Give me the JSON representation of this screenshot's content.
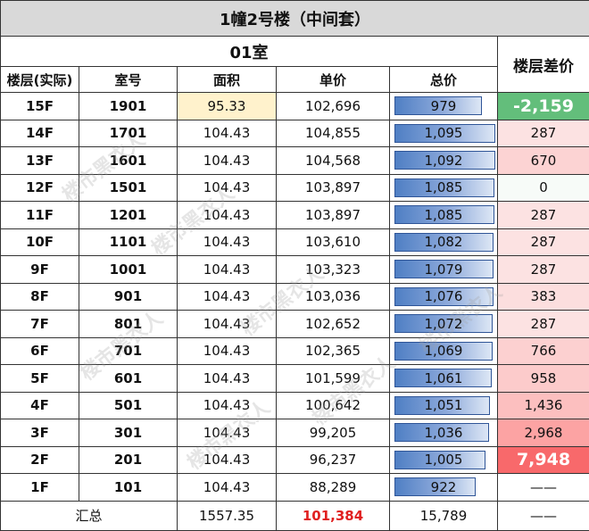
{
  "title": "1幢2号楼（中间套）",
  "room_label": "01室",
  "diff_header": "楼层差价",
  "headers": {
    "floor": "楼层(实际)",
    "unit": "室号",
    "area": "面积",
    "price": "单价",
    "total": "总价"
  },
  "rows": [
    {
      "floor": "15F",
      "unit": "1901",
      "area": "95.33",
      "price": "102,696",
      "total": "979",
      "total_val": 979,
      "diff": "-2,159",
      "diff_val": -2159
    },
    {
      "floor": "14F",
      "unit": "1701",
      "area": "104.43",
      "price": "104,855",
      "total": "1,095",
      "total_val": 1095,
      "diff": "287",
      "diff_val": 287
    },
    {
      "floor": "13F",
      "unit": "1601",
      "area": "104.43",
      "price": "104,568",
      "total": "1,092",
      "total_val": 1092,
      "diff": "670",
      "diff_val": 670
    },
    {
      "floor": "12F",
      "unit": "1501",
      "area": "104.43",
      "price": "103,897",
      "total": "1,085",
      "total_val": 1085,
      "diff": "0",
      "diff_val": 0
    },
    {
      "floor": "11F",
      "unit": "1201",
      "area": "104.43",
      "price": "103,897",
      "total": "1,085",
      "total_val": 1085,
      "diff": "287",
      "diff_val": 287
    },
    {
      "floor": "10F",
      "unit": "1101",
      "area": "104.43",
      "price": "103,610",
      "total": "1,082",
      "total_val": 1082,
      "diff": "287",
      "diff_val": 287
    },
    {
      "floor": "9F",
      "unit": "1001",
      "area": "104.43",
      "price": "103,323",
      "total": "1,079",
      "total_val": 1079,
      "diff": "287",
      "diff_val": 287
    },
    {
      "floor": "8F",
      "unit": "901",
      "area": "104.43",
      "price": "103,036",
      "total": "1,076",
      "total_val": 1076,
      "diff": "383",
      "diff_val": 383
    },
    {
      "floor": "7F",
      "unit": "801",
      "area": "104.43",
      "price": "102,652",
      "total": "1,072",
      "total_val": 1072,
      "diff": "287",
      "diff_val": 287
    },
    {
      "floor": "6F",
      "unit": "701",
      "area": "104.43",
      "price": "102,365",
      "total": "1,069",
      "total_val": 1069,
      "diff": "766",
      "diff_val": 766
    },
    {
      "floor": "5F",
      "unit": "601",
      "area": "104.43",
      "price": "101,599",
      "total": "1,061",
      "total_val": 1061,
      "diff": "958",
      "diff_val": 958
    },
    {
      "floor": "4F",
      "unit": "501",
      "area": "104.43",
      "price": "100,642",
      "total": "1,051",
      "total_val": 1051,
      "diff": "1,436",
      "diff_val": 1436
    },
    {
      "floor": "3F",
      "unit": "301",
      "area": "104.43",
      "price": "99,205",
      "total": "1,036",
      "total_val": 1036,
      "diff": "2,968",
      "diff_val": 2968
    },
    {
      "floor": "2F",
      "unit": "201",
      "area": "104.43",
      "price": "96,237",
      "total": "1,005",
      "total_val": 1005,
      "diff": "7,948",
      "diff_val": 7948
    },
    {
      "floor": "1F",
      "unit": "101",
      "area": "104.43",
      "price": "88,289",
      "total": "922",
      "total_val": 922,
      "diff": "——",
      "diff_val": null
    }
  ],
  "summary": {
    "label": "汇总",
    "area": "1557.35",
    "price": "101,384",
    "total": "15,789",
    "diff": "——"
  },
  "watermark": "楼市黑衣人",
  "colors": {
    "header_bg": "#d9d9d9",
    "area_highlight": "#fff2cc",
    "bar_blue": "#4f7fc4",
    "diff_green": "#63be7b",
    "diff_red": "#f8696b",
    "summary_price": "#e02020"
  }
}
